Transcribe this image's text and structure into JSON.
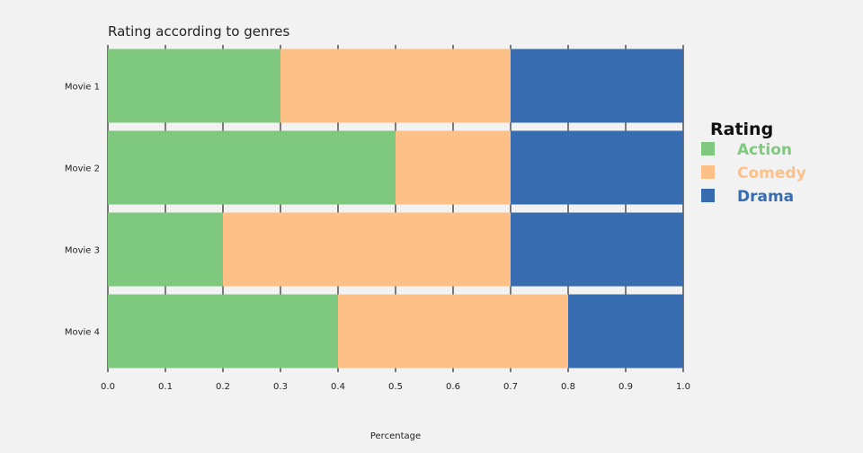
{
  "chart_data": {
    "type": "bar",
    "orientation": "horizontal",
    "stacked": true,
    "title": "Rating according to genres",
    "xlabel": "Percentage",
    "ylabel": "",
    "categories": [
      "Movie 1",
      "Movie 2",
      "Movie 3",
      "Movie 4"
    ],
    "series": [
      {
        "name": "Action",
        "values": [
          0.3,
          0.5,
          0.2,
          0.4
        ],
        "color": "#7fc97f"
      },
      {
        "name": "Comedy",
        "values": [
          0.4,
          0.2,
          0.5,
          0.4
        ],
        "color": "#fdc086"
      },
      {
        "name": "Drama",
        "values": [
          0.3,
          0.3,
          0.3,
          0.2
        ],
        "color": "#386cb0"
      }
    ],
    "xlim": [
      0,
      1
    ],
    "xticks": [
      "0.0",
      "0.1",
      "0.2",
      "0.3",
      "0.4",
      "0.5",
      "0.6",
      "0.7",
      "0.8",
      "0.9",
      "1.0"
    ],
    "legend": {
      "title": "Rating",
      "placement": "right"
    },
    "grid": true,
    "background": "#f2f2f2"
  }
}
